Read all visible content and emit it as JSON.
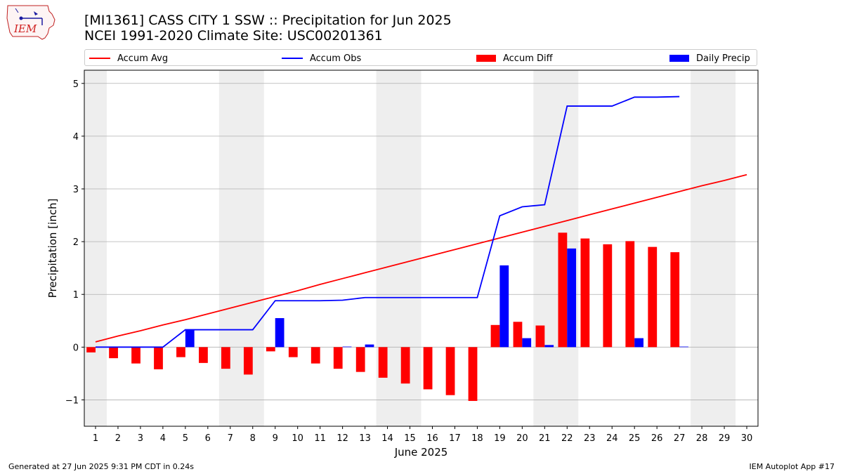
{
  "header": {
    "title_line1": "[MI1361] CASS CITY 1 SSW :: Precipitation for Jun 2025",
    "title_line2": "NCEI 1991-2020 Climate Site: USC00201361"
  },
  "logo": {
    "text": "IEM",
    "icon": "iem-logo-icon"
  },
  "legend": {
    "placement": "top",
    "items": [
      {
        "label": "Accum Avg",
        "kind": "line",
        "color": "#ff0000"
      },
      {
        "label": "Accum Obs",
        "kind": "line",
        "color": "#0000ff"
      },
      {
        "label": "Accum Diff",
        "kind": "bar",
        "color": "#ff0000"
      },
      {
        "label": "Daily Precip",
        "kind": "bar",
        "color": "#0000ff"
      }
    ]
  },
  "footer": {
    "left": "Generated at 27 Jun 2025 9:31 PM CDT in 0.24s",
    "right": "IEM Autoplot App #17"
  },
  "chart_data": {
    "type": "bar",
    "title": "[MI1361] CASS CITY 1 SSW :: Precipitation for Jun 2025",
    "xlabel": "June 2025",
    "ylabel": "Precipitation [inch]",
    "ylim": [
      -1.5,
      5.25
    ],
    "xlim": [
      0.5,
      30.5
    ],
    "yticks": [
      -1,
      0,
      1,
      2,
      3,
      4,
      5
    ],
    "ytick_labels": [
      "−1",
      "0",
      "1",
      "2",
      "3",
      "4",
      "5"
    ],
    "categories": [
      "1",
      "2",
      "3",
      "4",
      "5",
      "6",
      "7",
      "8",
      "9",
      "10",
      "11",
      "12",
      "13",
      "14",
      "15",
      "16",
      "17",
      "18",
      "19",
      "20",
      "21",
      "22",
      "23",
      "24",
      "25",
      "26",
      "27",
      "28",
      "29",
      "30"
    ],
    "grid": "horizontal",
    "weekend_shading": [
      [
        0.5,
        1.5
      ],
      [
        6.5,
        8.5
      ],
      [
        13.5,
        15.5
      ],
      [
        20.5,
        22.5
      ],
      [
        27.5,
        29.5
      ]
    ],
    "shade_color": "#eeeeee",
    "series": [
      {
        "name": "Accum Avg",
        "type": "line",
        "color": "#ff0000",
        "x": [
          1,
          2,
          3,
          4,
          5,
          6,
          7,
          8,
          9,
          10,
          11,
          12,
          13,
          14,
          15,
          16,
          17,
          18,
          19,
          20,
          21,
          22,
          23,
          24,
          25,
          26,
          27,
          28,
          29,
          30
        ],
        "values": [
          0.1,
          0.21,
          0.31,
          0.42,
          0.52,
          0.63,
          0.74,
          0.85,
          0.96,
          1.07,
          1.19,
          1.3,
          1.41,
          1.52,
          1.63,
          1.74,
          1.85,
          1.96,
          2.07,
          2.18,
          2.29,
          2.4,
          2.51,
          2.62,
          2.73,
          2.84,
          2.95,
          3.06,
          3.16,
          3.27
        ]
      },
      {
        "name": "Accum Obs",
        "type": "line",
        "color": "#0000ff",
        "x": [
          1,
          2,
          3,
          4,
          5,
          6,
          7,
          8,
          9,
          10,
          11,
          12,
          13,
          14,
          15,
          16,
          17,
          18,
          19,
          20,
          21,
          22,
          23,
          24,
          25,
          26,
          27
        ],
        "values": [
          0.0,
          0.0,
          0.0,
          0.0,
          0.33,
          0.33,
          0.33,
          0.33,
          0.88,
          0.88,
          0.88,
          0.89,
          0.94,
          0.94,
          0.94,
          0.94,
          0.94,
          0.94,
          2.49,
          2.66,
          2.7,
          4.57,
          4.57,
          4.57,
          4.74,
          4.74,
          4.75
        ]
      },
      {
        "name": "Accum Diff",
        "type": "bar",
        "color": "#ff0000",
        "x": [
          1,
          2,
          3,
          4,
          5,
          6,
          7,
          8,
          9,
          10,
          11,
          12,
          13,
          14,
          15,
          16,
          17,
          18,
          19,
          20,
          21,
          22,
          23,
          24,
          25,
          26,
          27
        ],
        "values": [
          -0.1,
          -0.21,
          -0.31,
          -0.42,
          -0.19,
          -0.3,
          -0.41,
          -0.52,
          -0.08,
          -0.19,
          -0.31,
          -0.41,
          -0.47,
          -0.58,
          -0.69,
          -0.8,
          -0.91,
          -1.02,
          0.42,
          0.48,
          0.41,
          2.17,
          2.06,
          1.95,
          2.01,
          1.9,
          1.8
        ]
      },
      {
        "name": "Daily Precip",
        "type": "bar",
        "color": "#0000ff",
        "x": [
          1,
          2,
          3,
          4,
          5,
          6,
          7,
          8,
          9,
          10,
          11,
          12,
          13,
          14,
          15,
          16,
          17,
          18,
          19,
          20,
          21,
          22,
          23,
          24,
          25,
          26,
          27
        ],
        "values": [
          0,
          0,
          0,
          0,
          0.33,
          0,
          0,
          0,
          0.55,
          0,
          0,
          0.01,
          0.05,
          0,
          0,
          0,
          0,
          0,
          1.55,
          0.17,
          0.04,
          1.87,
          0,
          0,
          0.17,
          0,
          0.01
        ]
      }
    ]
  }
}
